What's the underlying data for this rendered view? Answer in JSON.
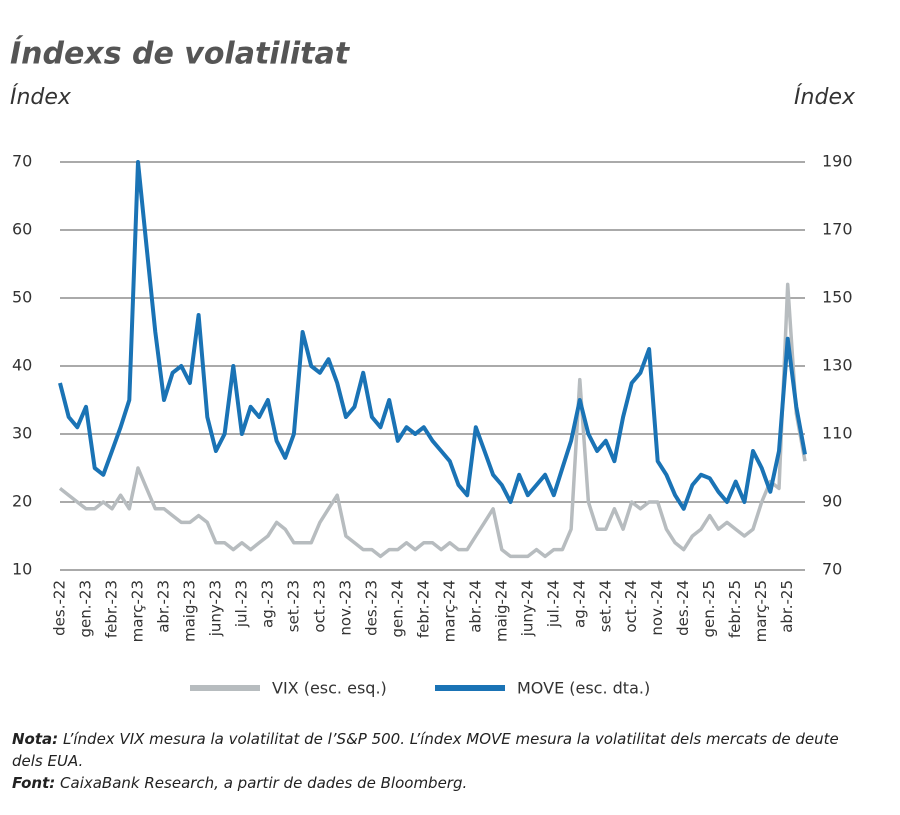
{
  "chart_data": {
    "type": "line",
    "title": "Índexs de volatilitat",
    "ylabel": "Índex",
    "y2label": "Índex",
    "categories": [
      "des.-22",
      null,
      null,
      "gen.-23",
      null,
      null,
      "febr.-23",
      null,
      null,
      "març-23",
      null,
      null,
      "abr.-23",
      null,
      null,
      "maig-23",
      null,
      null,
      "juny-23",
      null,
      null,
      "jul.-23",
      null,
      null,
      "ag.-23",
      null,
      null,
      "set.-23",
      null,
      null,
      "oct.-23",
      null,
      null,
      "nov.-23",
      null,
      null,
      "des.-23",
      null,
      null,
      "gen.-24",
      null,
      null,
      "febr.-24",
      null,
      null,
      "març-24",
      null,
      null,
      "abr.-24",
      null,
      null,
      "maig-24",
      null,
      null,
      "juny-24",
      null,
      null,
      "jul.-24",
      null,
      null,
      "ag.-24",
      null,
      null,
      "set.-24",
      null,
      null,
      "oct.-24",
      null,
      null,
      "nov.-24",
      null,
      null,
      "des.-24",
      null,
      null,
      "gen.-25",
      null,
      null,
      "febr.-25",
      null,
      null,
      "març-25",
      null,
      null,
      "abr.-25",
      null,
      null
    ],
    "series": [
      {
        "name": "VIX (esc. esq.)",
        "color": "#b7bcbf",
        "axis": "y",
        "values": [
          22,
          21,
          20,
          19,
          19,
          20,
          19,
          21,
          19,
          25,
          22,
          19,
          19,
          18,
          17,
          17,
          18,
          17,
          14,
          14,
          13,
          14,
          13,
          14,
          15,
          17,
          16,
          14,
          14,
          14,
          17,
          19,
          21,
          15,
          14,
          13,
          13,
          12,
          13,
          13,
          14,
          13,
          14,
          14,
          13,
          14,
          13,
          13,
          15,
          17,
          19,
          13,
          12,
          12,
          12,
          13,
          12,
          13,
          13,
          16,
          38,
          20,
          16,
          16,
          19,
          16,
          20,
          19,
          20,
          20,
          16,
          14,
          13,
          15,
          16,
          18,
          16,
          17,
          16,
          15,
          16,
          20,
          23,
          22,
          52,
          33,
          26
        ]
      },
      {
        "name": "MOVE (esc. dta.)",
        "color": "#1a73b5",
        "axis": "y2",
        "values": [
          125,
          115,
          112,
          118,
          100,
          98,
          105,
          112,
          120,
          190,
          165,
          140,
          120,
          128,
          130,
          125,
          145,
          115,
          105,
          110,
          130,
          110,
          118,
          115,
          120,
          108,
          103,
          110,
          140,
          130,
          128,
          132,
          125,
          115,
          118,
          128,
          115,
          112,
          120,
          108,
          112,
          110,
          112,
          108,
          105,
          102,
          95,
          92,
          112,
          105,
          98,
          95,
          90,
          98,
          92,
          95,
          98,
          92,
          100,
          108,
          120,
          110,
          105,
          108,
          102,
          115,
          125,
          128,
          135,
          102,
          98,
          92,
          88,
          95,
          98,
          97,
          93,
          90,
          96,
          90,
          105,
          100,
          93,
          105,
          138,
          118,
          104
        ]
      }
    ],
    "ylim": [
      10,
      70
    ],
    "yticks": [
      10,
      20,
      30,
      40,
      50,
      60,
      70
    ],
    "y2lim": [
      70,
      190
    ],
    "y2ticks": [
      70,
      90,
      110,
      130,
      150,
      170,
      190
    ],
    "grid": true,
    "legend": "bottom"
  },
  "note_label": "Nota:",
  "note": "L’índex VIX mesura la volatilitat de l’S&P 500. L’índex MOVE mesura la volatilitat dels mercats de deute dels EUA.",
  "source_label": "Font:",
  "source": "CaixaBank Research, a partir de dades de Bloomberg."
}
